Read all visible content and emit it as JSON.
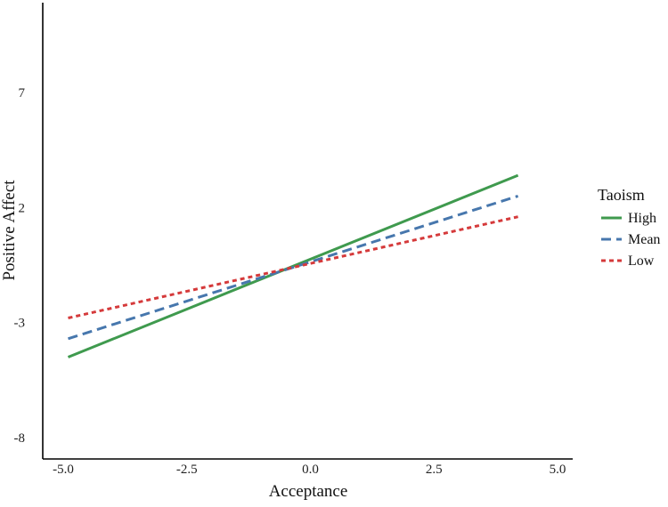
{
  "chart_data": {
    "type": "line",
    "xlabel": "Acceptance",
    "ylabel": "Positive Affect",
    "xlim": [
      -5.0,
      5.0
    ],
    "ylim": [
      -8,
      7
    ],
    "x_ticks": [
      "-5.0",
      "-2.5",
      "0.0",
      "2.5",
      "5.0"
    ],
    "x_tick_values": [
      -5.0,
      -2.5,
      0.0,
      2.5,
      5.0
    ],
    "y_ticks": [
      "-8",
      "-3",
      "2",
      "7"
    ],
    "y_tick_values": [
      -8,
      -3,
      2,
      7
    ],
    "grid": false,
    "legend": {
      "title": "Taoism",
      "position": "right"
    },
    "series": [
      {
        "name": "High",
        "color": "#3f9a4e",
        "style": "solid",
        "x": [
          -4.9,
          4.2
        ],
        "y": [
          -4.5,
          3.4
        ]
      },
      {
        "name": "Mean",
        "color": "#4777ad",
        "style": "dashed",
        "x": [
          -4.9,
          4.2
        ],
        "y": [
          -3.7,
          2.5
        ]
      },
      {
        "name": "Low",
        "color": "#d53a3b",
        "style": "dotted",
        "x": [
          -4.9,
          4.2
        ],
        "y": [
          -2.8,
          1.6
        ]
      }
    ]
  }
}
